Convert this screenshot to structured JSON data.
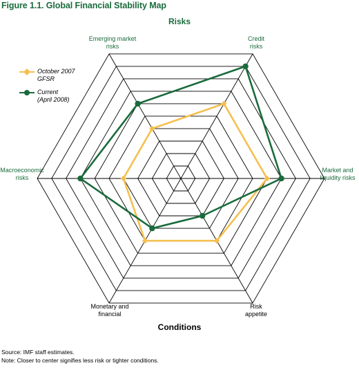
{
  "figure_title": "Figure 1.1. Global Financial Stability Map",
  "chart_data": {
    "type": "radar",
    "top_heading": "Risks",
    "bottom_heading": "Conditions",
    "axes": [
      "Credit risks",
      "Market and liquidity risks",
      "Risk appetite",
      "Monetary and financial",
      "Macroeconomic risks",
      "Emerging market risks"
    ],
    "axis_labels": [
      {
        "line1": "Credit",
        "line2": "risks",
        "color": "green"
      },
      {
        "line1": "Market and",
        "line2": "liquidity risks",
        "color": "green"
      },
      {
        "line1": "Risk",
        "line2": "appetite",
        "color": "black"
      },
      {
        "line1": "Monetary and",
        "line2": "financial",
        "color": "black"
      },
      {
        "line1": "Macroeconomic",
        "line2": "risks",
        "color": "green"
      },
      {
        "line1": "Emerging market",
        "line2": "risks",
        "color": "green"
      }
    ],
    "rings": 10,
    "range": [
      0,
      10
    ],
    "series": [
      {
        "legend_line1": "October 2007",
        "legend_line2": "GFSR",
        "color": "#f5bf4f",
        "values": [
          6,
          6,
          5,
          5,
          4,
          4
        ]
      },
      {
        "legend_line1": "Current",
        "legend_line2": "(April 2008)",
        "color": "#1a6b3c",
        "values": [
          9,
          7,
          3,
          4,
          7,
          6
        ]
      }
    ]
  },
  "source_line": "Source: IMF staff estimates.",
  "note_line": "Note: Closer to center signifies less risk or tighter conditions."
}
